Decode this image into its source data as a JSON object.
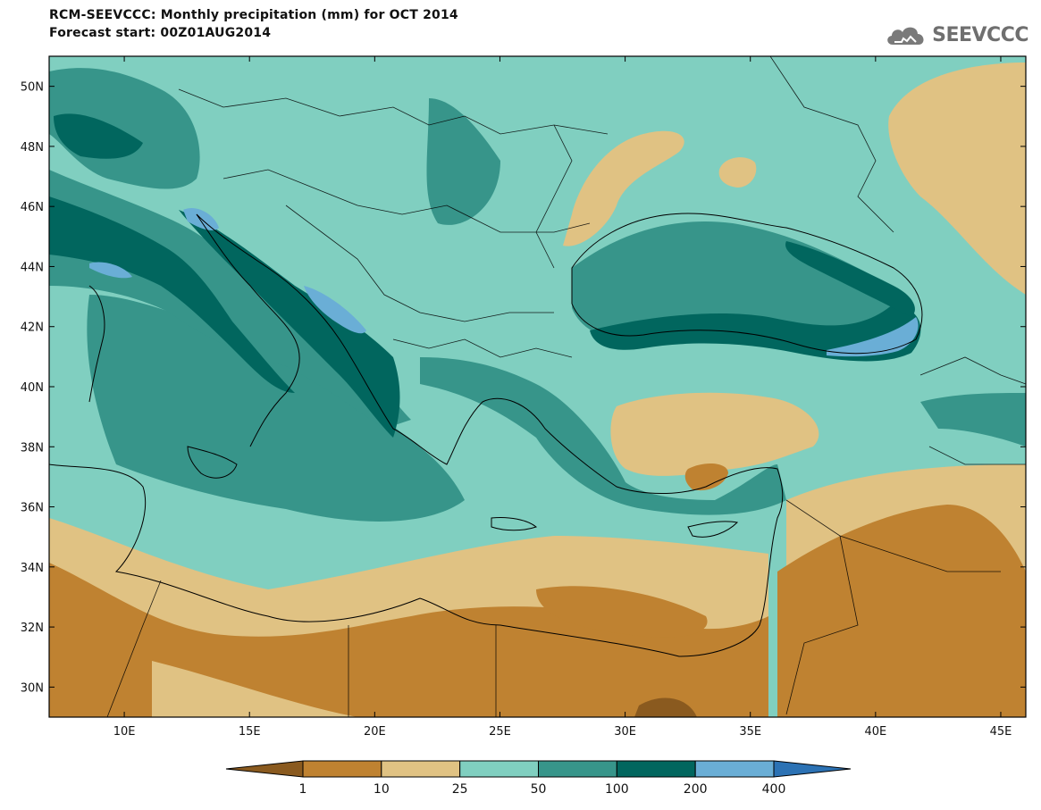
{
  "header": {
    "title": "RCM-SEEVCCC: Monthly precipitation (mm) for OCT 2014",
    "subtitle": "Forecast start: 00Z01AUG2014",
    "logo_text": "SEEVCCC"
  },
  "map": {
    "lon_range": [
      7,
      46
    ],
    "lat_range": [
      29,
      51
    ],
    "lon_ticks": [
      {
        "value": 10,
        "label": "10E"
      },
      {
        "value": 15,
        "label": "15E"
      },
      {
        "value": 20,
        "label": "20E"
      },
      {
        "value": 25,
        "label": "25E"
      },
      {
        "value": 30,
        "label": "30E"
      },
      {
        "value": 35,
        "label": "35E"
      },
      {
        "value": 40,
        "label": "40E"
      },
      {
        "value": 45,
        "label": "45E"
      }
    ],
    "lat_ticks": [
      {
        "value": 30,
        "label": "30N"
      },
      {
        "value": 32,
        "label": "32N"
      },
      {
        "value": 34,
        "label": "34N"
      },
      {
        "value": 36,
        "label": "36N"
      },
      {
        "value": 38,
        "label": "38N"
      },
      {
        "value": 40,
        "label": "40N"
      },
      {
        "value": 42,
        "label": "42N"
      },
      {
        "value": 44,
        "label": "44N"
      },
      {
        "value": 46,
        "label": "46N"
      },
      {
        "value": 48,
        "label": "48N"
      },
      {
        "value": 50,
        "label": "50N"
      }
    ]
  },
  "colorbar": {
    "levels": [
      "1",
      "10",
      "25",
      "50",
      "100",
      "200",
      "400"
    ],
    "colors": [
      "#8a5a1f",
      "#bf8231",
      "#e0c283",
      "#80cfc0",
      "#37958a",
      "#01665e",
      "#6aaed6",
      "#2c72b4"
    ]
  }
}
